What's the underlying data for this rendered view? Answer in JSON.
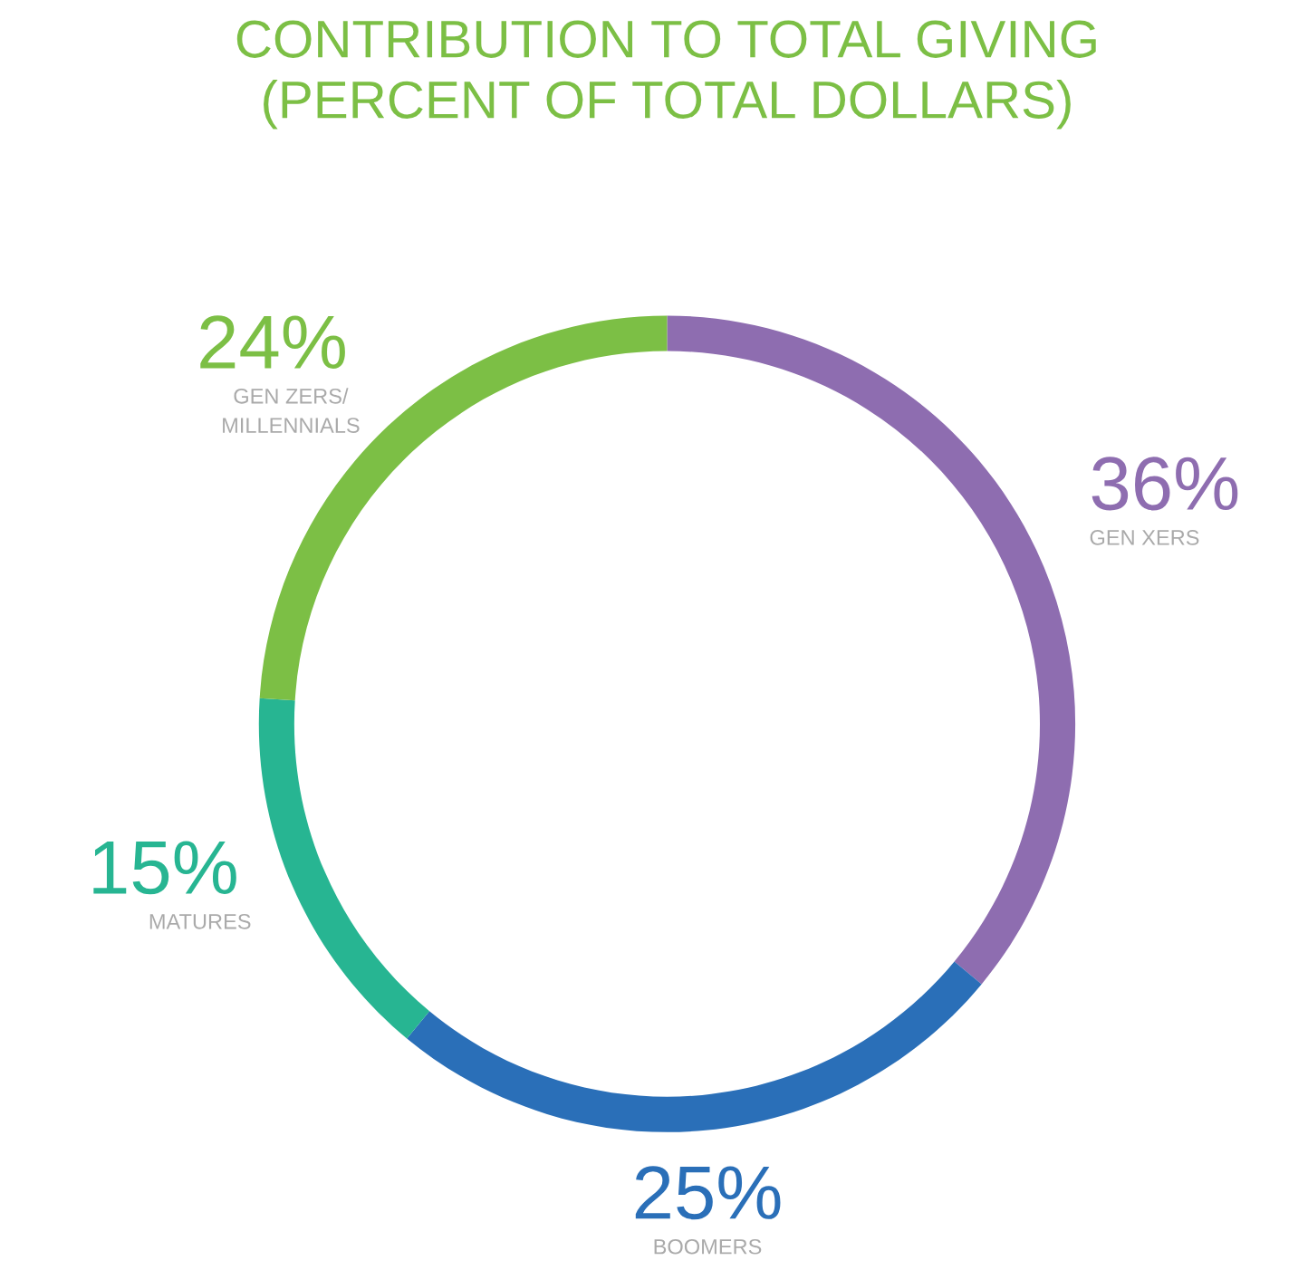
{
  "chart_data": {
    "type": "donut",
    "title": "CONTRIBUTION TO TOTAL GIVING\n(PERCENT OF TOTAL DOLLARS)",
    "categories": [
      "GEN XERS",
      "BOOMERS",
      "MATURES",
      "GEN ZERS/\nMILLENNIALS"
    ],
    "values": [
      36,
      25,
      15,
      24
    ],
    "value_labels": [
      "36%",
      "25%",
      "15%",
      "24%"
    ],
    "colors": [
      "#8e6db0",
      "#2a6fb8",
      "#27b592",
      "#7cbf45"
    ],
    "legend": false
  }
}
